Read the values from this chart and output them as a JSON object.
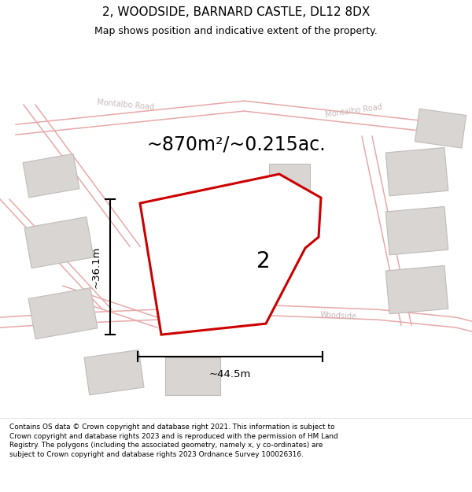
{
  "title": "2, WOODSIDE, BARNARD CASTLE, DL12 8DX",
  "subtitle": "Map shows position and indicative extent of the property.",
  "area_label": "~870m²/~0.215ac.",
  "plot_number": "2",
  "width_label": "~44.5m",
  "height_label": "~36.1m",
  "footnote": "Contains OS data © Crown copyright and database right 2021. This information is subject to Crown copyright and database rights 2023 and is reproduced with the permission of HM Land Registry. The polygons (including the associated geometry, namely x, y co-ordinates) are subject to Crown copyright and database rights 2023 Ordnance Survey 100026316.",
  "map_bg": "#f7f0ef",
  "plot_fill": "#ffffff",
  "plot_edge_color": "#cc0000",
  "road_line_color": "#e8a8a8",
  "building_fill": "#d8d5d3",
  "building_edge": "#c0bcba",
  "figsize": [
    6.0,
    6.25
  ],
  "dpi": 100,
  "title_fontsize": 11,
  "subtitle_fontsize": 9,
  "area_fontsize": 17,
  "plot_num_fontsize": 20,
  "dim_fontsize": 9.5,
  "road_label_fontsize": 7,
  "road_label_color": "#c8b8b8"
}
